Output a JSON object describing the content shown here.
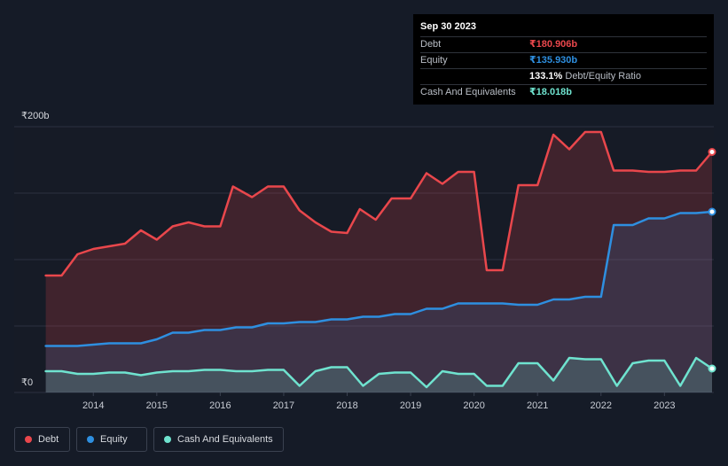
{
  "tooltip": {
    "date": "Sep 30 2023",
    "rows": [
      {
        "label": "Debt",
        "value": "₹180.906b",
        "color": "#e9474c"
      },
      {
        "label": "Equity",
        "value": "₹135.930b",
        "color": "#2e8fe0"
      },
      {
        "label": "",
        "value": "133.1%",
        "suffix": "Debt/Equity Ratio"
      },
      {
        "label": "Cash And Equivalents",
        "value": "₹18.018b",
        "color": "#6fe3cf"
      }
    ]
  },
  "legend": [
    {
      "label": "Debt",
      "color": "#e9474c"
    },
    {
      "label": "Equity",
      "color": "#2e8fe0"
    },
    {
      "label": "Cash And Equivalents",
      "color": "#6fe3cf"
    }
  ],
  "chart_data": {
    "type": "area",
    "y_top_label": "₹200b",
    "y_bottom_label": "₹0",
    "ylim": [
      0,
      200
    ],
    "xlim": [
      2013.2,
      2023.75
    ],
    "x_ticks": [
      "2014",
      "2015",
      "2016",
      "2017",
      "2018",
      "2019",
      "2020",
      "2021",
      "2022",
      "2023"
    ],
    "grid": true,
    "series": [
      {
        "name": "Debt",
        "color": "#e9474c",
        "points": [
          [
            2013.25,
            88
          ],
          [
            2013.5,
            88
          ],
          [
            2013.75,
            104
          ],
          [
            2014.0,
            108
          ],
          [
            2014.25,
            110
          ],
          [
            2014.5,
            112
          ],
          [
            2014.75,
            122
          ],
          [
            2015.0,
            115
          ],
          [
            2015.25,
            125
          ],
          [
            2015.5,
            128
          ],
          [
            2015.75,
            125
          ],
          [
            2016.0,
            125
          ],
          [
            2016.2,
            155
          ],
          [
            2016.5,
            147
          ],
          [
            2016.75,
            155
          ],
          [
            2017.0,
            155
          ],
          [
            2017.25,
            137
          ],
          [
            2017.5,
            128
          ],
          [
            2017.75,
            121
          ],
          [
            2018.0,
            120
          ],
          [
            2018.2,
            138
          ],
          [
            2018.45,
            130
          ],
          [
            2018.7,
            146
          ],
          [
            2019.0,
            146
          ],
          [
            2019.25,
            165
          ],
          [
            2019.5,
            157
          ],
          [
            2019.75,
            166
          ],
          [
            2020.0,
            166
          ],
          [
            2020.2,
            92
          ],
          [
            2020.45,
            92
          ],
          [
            2020.7,
            156
          ],
          [
            2021.0,
            156
          ],
          [
            2021.25,
            194
          ],
          [
            2021.5,
            183
          ],
          [
            2021.75,
            196
          ],
          [
            2022.0,
            196
          ],
          [
            2022.2,
            167
          ],
          [
            2022.5,
            167
          ],
          [
            2022.75,
            166
          ],
          [
            2023.0,
            166
          ],
          [
            2023.25,
            167
          ],
          [
            2023.5,
            167
          ],
          [
            2023.75,
            181
          ]
        ]
      },
      {
        "name": "Equity",
        "color": "#2e8fe0",
        "points": [
          [
            2013.25,
            35
          ],
          [
            2013.75,
            35
          ],
          [
            2014.25,
            37
          ],
          [
            2014.75,
            37
          ],
          [
            2015.0,
            40
          ],
          [
            2015.25,
            45
          ],
          [
            2015.5,
            45
          ],
          [
            2015.75,
            47
          ],
          [
            2016.0,
            47
          ],
          [
            2016.25,
            49
          ],
          [
            2016.5,
            49
          ],
          [
            2016.75,
            52
          ],
          [
            2017.0,
            52
          ],
          [
            2017.25,
            53
          ],
          [
            2017.5,
            53
          ],
          [
            2017.75,
            55
          ],
          [
            2018.0,
            55
          ],
          [
            2018.25,
            57
          ],
          [
            2018.5,
            57
          ],
          [
            2018.75,
            59
          ],
          [
            2019.0,
            59
          ],
          [
            2019.25,
            63
          ],
          [
            2019.5,
            63
          ],
          [
            2019.75,
            67
          ],
          [
            2020.0,
            67
          ],
          [
            2020.45,
            67
          ],
          [
            2020.7,
            66
          ],
          [
            2021.0,
            66
          ],
          [
            2021.25,
            70
          ],
          [
            2021.5,
            70
          ],
          [
            2021.75,
            72
          ],
          [
            2022.0,
            72
          ],
          [
            2022.2,
            126
          ],
          [
            2022.5,
            126
          ],
          [
            2022.75,
            131
          ],
          [
            2023.0,
            131
          ],
          [
            2023.25,
            135
          ],
          [
            2023.5,
            135
          ],
          [
            2023.75,
            136
          ]
        ]
      },
      {
        "name": "Cash And Equivalents",
        "color": "#6fe3cf",
        "points": [
          [
            2013.25,
            16
          ],
          [
            2013.5,
            16
          ],
          [
            2013.75,
            14
          ],
          [
            2014.0,
            14
          ],
          [
            2014.25,
            15
          ],
          [
            2014.5,
            15
          ],
          [
            2014.75,
            13
          ],
          [
            2015.0,
            15
          ],
          [
            2015.25,
            16
          ],
          [
            2015.5,
            16
          ],
          [
            2015.75,
            17
          ],
          [
            2016.0,
            17
          ],
          [
            2016.25,
            16
          ],
          [
            2016.5,
            16
          ],
          [
            2016.75,
            17
          ],
          [
            2017.0,
            17
          ],
          [
            2017.25,
            5
          ],
          [
            2017.5,
            16
          ],
          [
            2017.75,
            19
          ],
          [
            2018.0,
            19
          ],
          [
            2018.25,
            5
          ],
          [
            2018.5,
            14
          ],
          [
            2018.75,
            15
          ],
          [
            2019.0,
            15
          ],
          [
            2019.25,
            4
          ],
          [
            2019.5,
            16
          ],
          [
            2019.75,
            14
          ],
          [
            2020.0,
            14
          ],
          [
            2020.2,
            5
          ],
          [
            2020.45,
            5
          ],
          [
            2020.7,
            22
          ],
          [
            2021.0,
            22
          ],
          [
            2021.25,
            9
          ],
          [
            2021.5,
            26
          ],
          [
            2021.75,
            25
          ],
          [
            2022.0,
            25
          ],
          [
            2022.25,
            5
          ],
          [
            2022.5,
            22
          ],
          [
            2022.75,
            24
          ],
          [
            2023.0,
            24
          ],
          [
            2023.25,
            5
          ],
          [
            2023.5,
            26
          ],
          [
            2023.75,
            18
          ]
        ]
      }
    ]
  }
}
